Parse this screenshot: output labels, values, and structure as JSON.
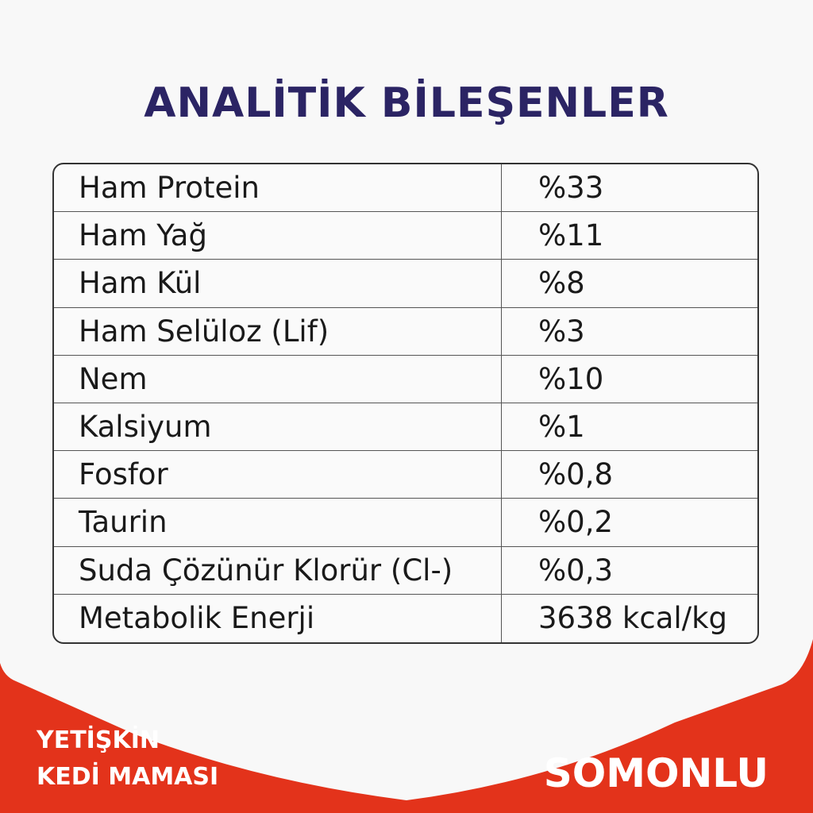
{
  "title": "ANALİTİK BİLEŞENLER",
  "colors": {
    "title": "#2b2464",
    "banner": "#e3331b",
    "background": "#f8f8f8"
  },
  "rows": [
    {
      "name": "Ham Protein",
      "value": "%33"
    },
    {
      "name": "Ham Yağ",
      "value": "%11"
    },
    {
      "name": "Ham Kül",
      "value": "%8"
    },
    {
      "name": "Ham Selüloz (Lif)",
      "value": "%3"
    },
    {
      "name": "Nem",
      "value": "%10"
    },
    {
      "name": "Kalsiyum",
      "value": "%1"
    },
    {
      "name": "Fosfor",
      "value": "%0,8"
    },
    {
      "name": "Taurin",
      "value": "%0,2"
    },
    {
      "name": "Suda Çözünür Klorür (Cl-)",
      "value": "%0,3"
    },
    {
      "name": "Metabolik Enerji",
      "value": "3638 kcal/kg"
    }
  ],
  "banner": {
    "line1": "YETİŞKİN",
    "line2": "KEDİ MAMASI",
    "flavor": "SOMONLU"
  }
}
